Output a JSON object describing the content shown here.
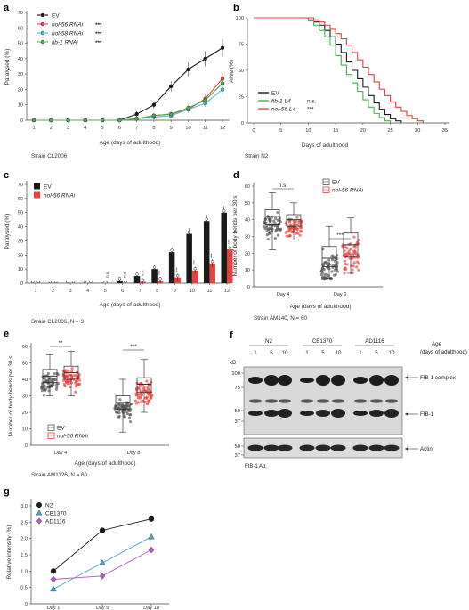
{
  "panels": {
    "a": {
      "label": "a",
      "xlabel": "Age (days of adulthood)",
      "ylabel": "Paralysed (%)",
      "xticks": [
        "1",
        "2",
        "3",
        "4",
        "5",
        "6",
        "7",
        "8",
        "9",
        "10",
        "11",
        "12"
      ],
      "yticks": [
        "0",
        "10",
        "20",
        "30",
        "40",
        "50",
        "60",
        "70"
      ],
      "ylim": [
        0,
        70
      ],
      "strain": "Strain CL2006",
      "series": [
        {
          "name": "EV",
          "color": "#1a1a1a",
          "marker": "circle",
          "sig": "",
          "values": [
            0,
            0,
            0,
            0,
            0,
            0,
            4,
            10,
            22,
            33,
            40,
            47
          ]
        },
        {
          "name": "nol-56 RNAi",
          "color": "#e8413d",
          "marker": "circle",
          "sig": "***",
          "values": [
            0,
            0,
            0,
            0,
            0,
            0,
            1,
            3,
            4,
            7,
            14,
            27
          ]
        },
        {
          "name": "nol-58 RNAi",
          "color": "#5bbcd6",
          "marker": "circle",
          "sig": "***",
          "values": [
            0,
            0,
            0,
            0,
            0,
            0,
            1,
            2,
            3,
            7,
            11,
            20
          ]
        },
        {
          "name": "fib-1 RNAi",
          "color": "#4caf50",
          "marker": "circle",
          "sig": "***",
          "values": [
            0,
            0,
            0,
            0,
            0,
            0,
            1,
            3,
            4,
            8,
            13,
            24
          ]
        }
      ]
    },
    "b": {
      "label": "b",
      "xlabel": "Days of adulthood",
      "ylabel": "Alive (%)",
      "xticks": [
        "0",
        "5",
        "10",
        "15",
        "20",
        "25",
        "30",
        "35"
      ],
      "yticks": [
        "0",
        "25",
        "50",
        "75",
        "100"
      ],
      "strain": "Strain N2",
      "legend": [
        {
          "name": "EV",
          "sig": "",
          "color": "#1a1a1a"
        },
        {
          "name": "fib-1 L4",
          "sig": "n.s.",
          "color": "#4caf50"
        },
        {
          "name": "nol-56 L4",
          "sig": "***",
          "color": "#e8413d"
        }
      ],
      "series": [
        {
          "name": "EV",
          "color": "#1a1a1a",
          "points": [
            [
              0,
              100
            ],
            [
              8,
              100
            ],
            [
              10,
              98
            ],
            [
              11,
              96
            ],
            [
              12,
              93
            ],
            [
              13,
              88
            ],
            [
              14,
              82
            ],
            [
              15,
              75
            ],
            [
              16,
              67
            ],
            [
              17,
              58
            ],
            [
              18,
              50
            ],
            [
              19,
              42
            ],
            [
              20,
              34
            ],
            [
              21,
              26
            ],
            [
              22,
              19
            ],
            [
              23,
              13
            ],
            [
              24,
              8
            ],
            [
              25,
              4
            ],
            [
              26,
              2
            ],
            [
              27,
              0
            ]
          ]
        },
        {
          "name": "fib-1 L4",
          "color": "#4caf50",
          "points": [
            [
              0,
              100
            ],
            [
              8,
              100
            ],
            [
              10,
              97
            ],
            [
              11,
              93
            ],
            [
              12,
              88
            ],
            [
              13,
              82
            ],
            [
              14,
              74
            ],
            [
              15,
              64
            ],
            [
              16,
              55
            ],
            [
              17,
              46
            ],
            [
              18,
              38
            ],
            [
              19,
              30
            ],
            [
              20,
              22
            ],
            [
              21,
              15
            ],
            [
              22,
              9
            ],
            [
              23,
              5
            ],
            [
              24,
              2
            ],
            [
              25,
              0
            ]
          ]
        },
        {
          "name": "nol-56 L4",
          "color": "#e8413d",
          "points": [
            [
              0,
              100
            ],
            [
              9,
              100
            ],
            [
              11,
              98
            ],
            [
              12,
              96
            ],
            [
              13,
              93
            ],
            [
              14,
              89
            ],
            [
              15,
              85
            ],
            [
              16,
              80
            ],
            [
              17,
              74
            ],
            [
              18,
              67
            ],
            [
              19,
              60
            ],
            [
              20,
              53
            ],
            [
              21,
              46
            ],
            [
              22,
              39
            ],
            [
              23,
              32
            ],
            [
              24,
              26
            ],
            [
              25,
              20
            ],
            [
              26,
              15
            ],
            [
              27,
              11
            ],
            [
              28,
              7
            ],
            [
              29,
              4
            ],
            [
              30,
              2
            ],
            [
              31,
              0
            ]
          ]
        }
      ]
    },
    "c": {
      "label": "c",
      "xlabel": "Age (days of adulthood)",
      "ylabel": "Paralysed (%)",
      "xticks": [
        "1",
        "2",
        "3",
        "4",
        "5",
        "6",
        "7",
        "8",
        "9",
        "10",
        "11",
        "12"
      ],
      "yticks": [
        "0",
        "10",
        "20",
        "30",
        "40",
        "50",
        "60",
        "70"
      ],
      "ylim": [
        0,
        70
      ],
      "strain": "Strain CL2006, N = 3",
      "legend": [
        {
          "name": "EV",
          "color": "#1a1a1a"
        },
        {
          "name": "nol-56 RNAi",
          "color": "#e8413d"
        }
      ],
      "sigs": [
        "",
        "",
        "",
        "",
        "n.s.",
        "n.s.",
        "n.s.",
        "***",
        "***",
        "***",
        "***",
        "***"
      ],
      "series": [
        {
          "name": "EV",
          "color": "#1a1a1a",
          "values": [
            0,
            0,
            0,
            0,
            0,
            2,
            5,
            10,
            22,
            35,
            44,
            50
          ]
        },
        {
          "name": "nol-56 RNAi",
          "color": "#e8413d",
          "values": [
            0,
            0,
            0,
            0,
            0,
            0,
            1,
            2,
            4,
            9,
            14,
            24
          ]
        }
      ]
    },
    "d": {
      "label": "d",
      "ylabel": "Number of body bends per 30 s",
      "xlabel": "Age (days of adulthood)",
      "yticks": [
        "0",
        "10",
        "20",
        "30",
        "40",
        "50",
        "60"
      ],
      "ylim": [
        0,
        60
      ],
      "groups": [
        "Day 4",
        "Day 6"
      ],
      "strain": "Strain AM140, N = 60",
      "sigs": [
        "n.s.",
        "***"
      ],
      "legend": [
        {
          "name": "EV",
          "color": "#555555"
        },
        {
          "name": "nol-56 RNAi",
          "color": "#e8413d"
        }
      ],
      "boxes": [
        {
          "group": "Day 4",
          "series": "EV",
          "min": 22,
          "q1": 37,
          "median": 42,
          "q3": 46,
          "max": 56
        },
        {
          "group": "Day 4",
          "series": "nol-56 RNAi",
          "min": 28,
          "q1": 36,
          "median": 40,
          "q3": 43,
          "max": 50
        },
        {
          "group": "Day 6",
          "series": "EV",
          "min": 5,
          "q1": 12,
          "median": 17,
          "q3": 24,
          "max": 36
        },
        {
          "group": "Day 6",
          "series": "nol-56 RNAi",
          "min": 8,
          "q1": 18,
          "median": 25,
          "q3": 32,
          "max": 41
        }
      ]
    },
    "e": {
      "label": "e",
      "ylabel": "Number of body bends per 30 s",
      "xlabel": "Age (days of adulthood)",
      "yticks": [
        "0",
        "10",
        "20",
        "30",
        "40",
        "50",
        "60"
      ],
      "ylim": [
        0,
        60
      ],
      "groups": [
        "Day 4",
        "Day 8"
      ],
      "strain": "Strain AM1126, N = 60",
      "sigs": [
        "**",
        "***"
      ],
      "legend": [
        {
          "name": "EV",
          "color": "#555555"
        },
        {
          "name": "nol-56 RNAi",
          "color": "#e8413d"
        }
      ],
      "boxes": [
        {
          "group": "Day 4",
          "series": "EV",
          "min": 30,
          "q1": 38,
          "median": 42,
          "q3": 46,
          "max": 55
        },
        {
          "group": "Day 4",
          "series": "nol-56 RNAi",
          "min": 30,
          "q1": 40,
          "median": 44,
          "q3": 48,
          "max": 57
        },
        {
          "group": "Day 8",
          "series": "EV",
          "min": 8,
          "q1": 22,
          "median": 26,
          "q3": 30,
          "max": 40
        },
        {
          "group": "Day 8",
          "series": "nol-56 RNAi",
          "min": 20,
          "q1": 32,
          "median": 37,
          "q3": 41,
          "max": 52
        }
      ]
    },
    "f": {
      "label": "f",
      "kd": "kD",
      "strains": [
        "N2",
        "CB1370",
        "AD1116"
      ],
      "lanes": [
        "1",
        "5",
        "10",
        "1",
        "5",
        "10",
        "1",
        "5",
        "10"
      ],
      "age_label_1": "Age",
      "age_label_2": "(days of adulthood)",
      "markers_top": [
        "100",
        "75",
        "50",
        "37"
      ],
      "markers_bottom": [
        "50",
        "37"
      ],
      "band_labels": [
        "FIB-1 complex",
        "FIB-1",
        "Actin"
      ],
      "antibody": "FIB-1 Ab"
    },
    "g": {
      "label": "g",
      "ylabel": "Relative intensity (%)",
      "categories": [
        "Day 1",
        "Day 5",
        "Day 10"
      ],
      "yticks": [
        "0",
        "0.5",
        "1.0",
        "1.5",
        "2.0",
        "2.5",
        "3.0"
      ],
      "ylim": [
        0,
        3.0
      ],
      "series": [
        {
          "name": "N2",
          "color": "#1a1a1a",
          "marker": "circle",
          "values": [
            1.0,
            2.25,
            2.6
          ]
        },
        {
          "name": "CB1370",
          "color": "#4ba3c7",
          "marker": "triangle",
          "values": [
            0.45,
            1.25,
            2.05
          ]
        },
        {
          "name": "AD1116",
          "color": "#b05cc0",
          "marker": "diamond",
          "values": [
            0.75,
            0.85,
            1.65
          ]
        }
      ]
    }
  }
}
